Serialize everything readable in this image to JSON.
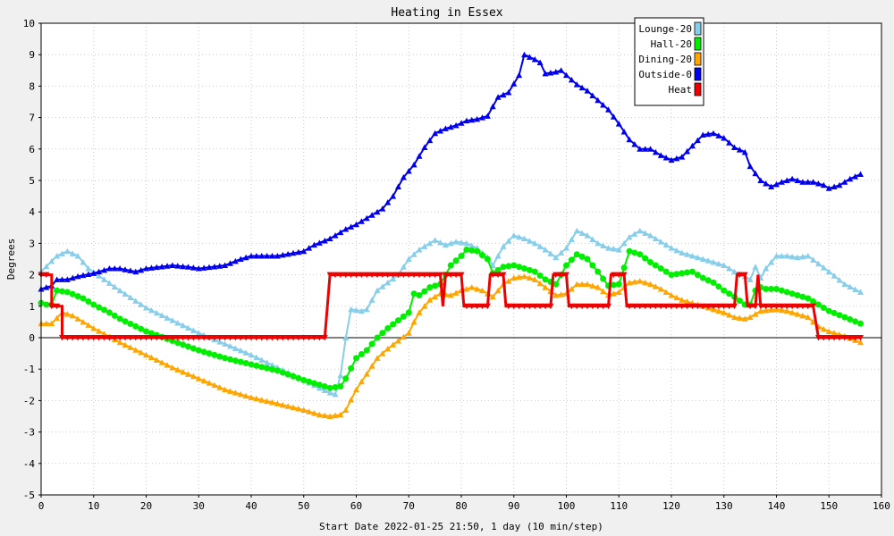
{
  "chart_data": {
    "type": "line",
    "title": "Heating in Essex",
    "xlabel": "Start Date 2022-01-25 21:50, 1 day (10 min/step)",
    "ylabel": "Degrees",
    "xlim": [
      0,
      160
    ],
    "ylim": [
      -5,
      10
    ],
    "x_ticks": [
      0,
      10,
      20,
      30,
      40,
      50,
      60,
      70,
      80,
      90,
      100,
      110,
      120,
      130,
      140,
      150,
      160
    ],
    "y_ticks": [
      -5,
      -4,
      -3,
      -2,
      -1,
      0,
      1,
      2,
      3,
      4,
      5,
      6,
      7,
      8,
      9,
      10
    ],
    "grid": true,
    "legend_position": "top-right",
    "series": [
      {
        "name": "Lounge-20",
        "color": "#87ceeb",
        "marker": "triangle",
        "points": [
          [
            0,
            2.1
          ],
          [
            3,
            2.6
          ],
          [
            5,
            2.75
          ],
          [
            7,
            2.6
          ],
          [
            9,
            2.2
          ],
          [
            12,
            1.85
          ],
          [
            15,
            1.5
          ],
          [
            20,
            0.95
          ],
          [
            25,
            0.55
          ],
          [
            30,
            0.15
          ],
          [
            35,
            -0.2
          ],
          [
            40,
            -0.55
          ],
          [
            45,
            -0.95
          ],
          [
            50,
            -1.35
          ],
          [
            53,
            -1.6
          ],
          [
            55,
            -1.75
          ],
          [
            56,
            -1.8
          ],
          [
            57,
            -1.2
          ],
          [
            58,
            0.0
          ],
          [
            59,
            0.9
          ],
          [
            61,
            0.85
          ],
          [
            62,
            0.9
          ],
          [
            64,
            1.5
          ],
          [
            66,
            1.75
          ],
          [
            68,
            2.0
          ],
          [
            70,
            2.5
          ],
          [
            72,
            2.8
          ],
          [
            75,
            3.1
          ],
          [
            77,
            2.95
          ],
          [
            79,
            3.05
          ],
          [
            81,
            3.0
          ],
          [
            83,
            2.85
          ],
          [
            85,
            2.55
          ],
          [
            86,
            2.3
          ],
          [
            88,
            2.9
          ],
          [
            90,
            3.25
          ],
          [
            92,
            3.15
          ],
          [
            94,
            3.0
          ],
          [
            96,
            2.8
          ],
          [
            98,
            2.55
          ],
          [
            100,
            2.85
          ],
          [
            102,
            3.4
          ],
          [
            104,
            3.25
          ],
          [
            106,
            3.0
          ],
          [
            108,
            2.85
          ],
          [
            110,
            2.8
          ],
          [
            112,
            3.2
          ],
          [
            114,
            3.4
          ],
          [
            116,
            3.25
          ],
          [
            118,
            3.05
          ],
          [
            120,
            2.85
          ],
          [
            122,
            2.7
          ],
          [
            125,
            2.55
          ],
          [
            128,
            2.4
          ],
          [
            130,
            2.3
          ],
          [
            132,
            2.1
          ],
          [
            134,
            1.95
          ],
          [
            135,
            1.85
          ],
          [
            136,
            2.25
          ],
          [
            137,
            1.9
          ],
          [
            138,
            2.2
          ],
          [
            140,
            2.6
          ],
          [
            142,
            2.6
          ],
          [
            144,
            2.55
          ],
          [
            146,
            2.6
          ],
          [
            148,
            2.35
          ],
          [
            150,
            2.1
          ],
          [
            153,
            1.7
          ],
          [
            156,
            1.45
          ]
        ]
      },
      {
        "name": "Hall-20",
        "color": "#00ee00",
        "marker": "circle",
        "points": [
          [
            0,
            1.1
          ],
          [
            1,
            1.05
          ],
          [
            2,
            1.05
          ],
          [
            3,
            1.5
          ],
          [
            5,
            1.45
          ],
          [
            8,
            1.25
          ],
          [
            10,
            1.05
          ],
          [
            13,
            0.8
          ],
          [
            15,
            0.6
          ],
          [
            20,
            0.2
          ],
          [
            25,
            -0.1
          ],
          [
            30,
            -0.4
          ],
          [
            35,
            -0.65
          ],
          [
            40,
            -0.85
          ],
          [
            45,
            -1.05
          ],
          [
            50,
            -1.35
          ],
          [
            53,
            -1.5
          ],
          [
            55,
            -1.6
          ],
          [
            57,
            -1.55
          ],
          [
            58,
            -1.3
          ],
          [
            60,
            -0.65
          ],
          [
            62,
            -0.4
          ],
          [
            64,
            0.0
          ],
          [
            66,
            0.3
          ],
          [
            68,
            0.55
          ],
          [
            70,
            0.8
          ],
          [
            71,
            1.4
          ],
          [
            72,
            1.35
          ],
          [
            74,
            1.6
          ],
          [
            76,
            1.7
          ],
          [
            78,
            2.3
          ],
          [
            80,
            2.6
          ],
          [
            81,
            2.8
          ],
          [
            83,
            2.75
          ],
          [
            85,
            2.5
          ],
          [
            86,
            2.05
          ],
          [
            88,
            2.25
          ],
          [
            90,
            2.3
          ],
          [
            92,
            2.2
          ],
          [
            94,
            2.1
          ],
          [
            96,
            1.85
          ],
          [
            98,
            1.7
          ],
          [
            100,
            2.3
          ],
          [
            102,
            2.65
          ],
          [
            104,
            2.5
          ],
          [
            106,
            2.1
          ],
          [
            108,
            1.65
          ],
          [
            110,
            1.7
          ],
          [
            112,
            2.75
          ],
          [
            114,
            2.65
          ],
          [
            116,
            2.4
          ],
          [
            118,
            2.2
          ],
          [
            120,
            2.0
          ],
          [
            122,
            2.05
          ],
          [
            124,
            2.1
          ],
          [
            126,
            1.9
          ],
          [
            128,
            1.75
          ],
          [
            130,
            1.5
          ],
          [
            132,
            1.3
          ],
          [
            134,
            1.05
          ],
          [
            135,
            1.05
          ],
          [
            136,
            1.5
          ],
          [
            137,
            1.6
          ],
          [
            138,
            1.55
          ],
          [
            140,
            1.55
          ],
          [
            142,
            1.45
          ],
          [
            144,
            1.35
          ],
          [
            146,
            1.25
          ],
          [
            148,
            1.05
          ],
          [
            150,
            0.85
          ],
          [
            153,
            0.65
          ],
          [
            156,
            0.45
          ]
        ]
      },
      {
        "name": "Dining-20",
        "color": "#ffa500",
        "marker": "triangle",
        "points": [
          [
            0,
            0.45
          ],
          [
            2,
            0.45
          ],
          [
            4,
            0.8
          ],
          [
            6,
            0.7
          ],
          [
            8,
            0.5
          ],
          [
            10,
            0.3
          ],
          [
            15,
            -0.15
          ],
          [
            20,
            -0.55
          ],
          [
            25,
            -0.95
          ],
          [
            30,
            -1.3
          ],
          [
            35,
            -1.65
          ],
          [
            40,
            -1.9
          ],
          [
            45,
            -2.1
          ],
          [
            50,
            -2.3
          ],
          [
            53,
            -2.45
          ],
          [
            55,
            -2.5
          ],
          [
            57,
            -2.45
          ],
          [
            58,
            -2.3
          ],
          [
            60,
            -1.65
          ],
          [
            62,
            -1.15
          ],
          [
            64,
            -0.65
          ],
          [
            66,
            -0.35
          ],
          [
            68,
            -0.1
          ],
          [
            70,
            0.15
          ],
          [
            71,
            0.5
          ],
          [
            72,
            0.8
          ],
          [
            74,
            1.2
          ],
          [
            76,
            1.4
          ],
          [
            78,
            1.35
          ],
          [
            80,
            1.5
          ],
          [
            82,
            1.6
          ],
          [
            84,
            1.5
          ],
          [
            86,
            1.3
          ],
          [
            88,
            1.7
          ],
          [
            90,
            1.9
          ],
          [
            92,
            1.95
          ],
          [
            94,
            1.85
          ],
          [
            96,
            1.6
          ],
          [
            98,
            1.35
          ],
          [
            100,
            1.4
          ],
          [
            102,
            1.7
          ],
          [
            104,
            1.7
          ],
          [
            106,
            1.6
          ],
          [
            108,
            1.35
          ],
          [
            110,
            1.45
          ],
          [
            112,
            1.75
          ],
          [
            114,
            1.8
          ],
          [
            116,
            1.7
          ],
          [
            118,
            1.55
          ],
          [
            120,
            1.35
          ],
          [
            122,
            1.2
          ],
          [
            124,
            1.1
          ],
          [
            126,
            1.0
          ],
          [
            128,
            0.9
          ],
          [
            130,
            0.8
          ],
          [
            132,
            0.65
          ],
          [
            134,
            0.6
          ],
          [
            135,
            0.65
          ],
          [
            137,
            0.85
          ],
          [
            140,
            0.9
          ],
          [
            142,
            0.85
          ],
          [
            144,
            0.75
          ],
          [
            146,
            0.65
          ],
          [
            148,
            0.35
          ],
          [
            150,
            0.2
          ],
          [
            153,
            0.05
          ],
          [
            156,
            -0.15
          ]
        ]
      },
      {
        "name": "Outside-0",
        "color": "#0000ee",
        "marker": "triangle",
        "points": [
          [
            0,
            1.55
          ],
          [
            2,
            1.65
          ],
          [
            3,
            1.85
          ],
          [
            5,
            1.85
          ],
          [
            7,
            1.95
          ],
          [
            10,
            2.05
          ],
          [
            13,
            2.2
          ],
          [
            15,
            2.2
          ],
          [
            18,
            2.1
          ],
          [
            20,
            2.2
          ],
          [
            25,
            2.3
          ],
          [
            28,
            2.25
          ],
          [
            30,
            2.2
          ],
          [
            35,
            2.3
          ],
          [
            38,
            2.5
          ],
          [
            40,
            2.6
          ],
          [
            45,
            2.6
          ],
          [
            50,
            2.75
          ],
          [
            52,
            2.95
          ],
          [
            55,
            3.15
          ],
          [
            58,
            3.45
          ],
          [
            60,
            3.6
          ],
          [
            63,
            3.9
          ],
          [
            65,
            4.1
          ],
          [
            67,
            4.5
          ],
          [
            69,
            5.1
          ],
          [
            71,
            5.5
          ],
          [
            73,
            6.05
          ],
          [
            75,
            6.5
          ],
          [
            77,
            6.65
          ],
          [
            79,
            6.75
          ],
          [
            81,
            6.9
          ],
          [
            83,
            6.95
          ],
          [
            85,
            7.05
          ],
          [
            87,
            7.65
          ],
          [
            89,
            7.8
          ],
          [
            91,
            8.35
          ],
          [
            92,
            9.0
          ],
          [
            94,
            8.85
          ],
          [
            95,
            8.75
          ],
          [
            96,
            8.4
          ],
          [
            98,
            8.45
          ],
          [
            99,
            8.5
          ],
          [
            100,
            8.35
          ],
          [
            102,
            8.05
          ],
          [
            104,
            7.85
          ],
          [
            106,
            7.55
          ],
          [
            108,
            7.25
          ],
          [
            110,
            6.8
          ],
          [
            112,
            6.3
          ],
          [
            114,
            6.0
          ],
          [
            116,
            6.0
          ],
          [
            118,
            5.8
          ],
          [
            120,
            5.65
          ],
          [
            122,
            5.75
          ],
          [
            124,
            6.1
          ],
          [
            126,
            6.45
          ],
          [
            128,
            6.5
          ],
          [
            130,
            6.35
          ],
          [
            132,
            6.05
          ],
          [
            134,
            5.9
          ],
          [
            135,
            5.45
          ],
          [
            137,
            5.0
          ],
          [
            139,
            4.8
          ],
          [
            141,
            4.95
          ],
          [
            143,
            5.05
          ],
          [
            145,
            4.95
          ],
          [
            147,
            4.95
          ],
          [
            149,
            4.85
          ],
          [
            150,
            4.75
          ],
          [
            152,
            4.85
          ],
          [
            154,
            5.05
          ],
          [
            156,
            5.2
          ]
        ]
      },
      {
        "name": "Heat",
        "color": "#ee0000",
        "marker": "triangle-down",
        "points": [
          [
            0,
            2.0
          ],
          [
            2,
            2.0
          ],
          [
            2,
            1.0
          ],
          [
            4,
            1.0
          ],
          [
            4,
            0.0
          ],
          [
            54,
            0.0
          ],
          [
            55,
            2.0
          ],
          [
            76,
            2.0
          ],
          [
            76.5,
            1.0
          ],
          [
            77,
            2.0
          ],
          [
            80,
            2.0
          ],
          [
            80.5,
            1.0
          ],
          [
            85,
            1.0
          ],
          [
            85.5,
            2.0
          ],
          [
            88,
            2.0
          ],
          [
            88.5,
            1.0
          ],
          [
            97,
            1.0
          ],
          [
            97.5,
            2.0
          ],
          [
            100,
            2.0
          ],
          [
            100.5,
            1.0
          ],
          [
            108,
            1.0
          ],
          [
            108.5,
            2.0
          ],
          [
            111,
            2.0
          ],
          [
            111.5,
            1.0
          ],
          [
            132,
            1.0
          ],
          [
            132.5,
            2.0
          ],
          [
            134,
            2.0
          ],
          [
            134.5,
            1.0
          ],
          [
            136,
            1.0
          ],
          [
            136.5,
            2.0
          ],
          [
            137,
            1.0
          ],
          [
            147,
            1.0
          ],
          [
            148,
            0.0
          ],
          [
            156,
            0.0
          ]
        ]
      }
    ]
  }
}
